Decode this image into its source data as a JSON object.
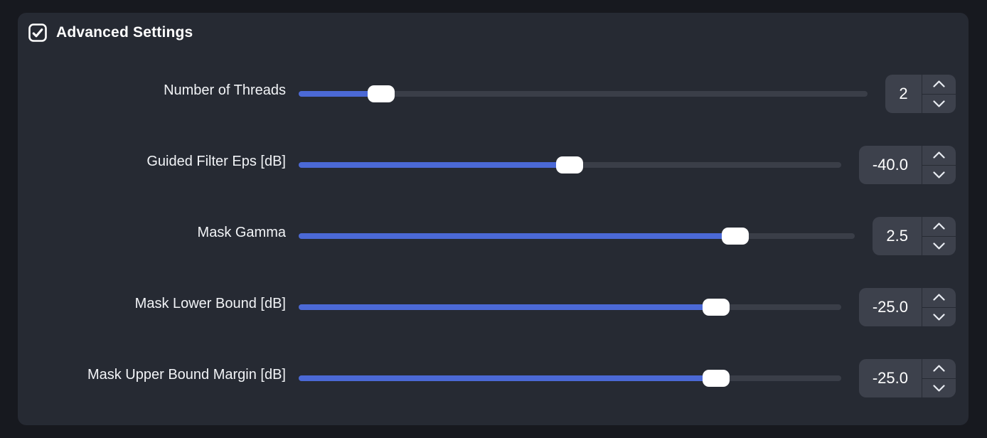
{
  "colors": {
    "page_background": "#17191f",
    "panel_background": "#262a33",
    "slider_track": "#3a3e48",
    "slider_fill": "#4b69d6",
    "slider_thumb": "#ffffff",
    "input_background": "#3d414c",
    "text": "#ffffff"
  },
  "header": {
    "label": "Advanced Settings",
    "checkbox_checked": true
  },
  "sliders": [
    {
      "label": "Number of Threads",
      "value": "2",
      "fill_percent": 14.5
    },
    {
      "label": "Guided Filter Eps [dB]",
      "value": "-40.0",
      "fill_percent": 50.0
    },
    {
      "label": "Mask Gamma",
      "value": "2.5",
      "fill_percent": 78.5
    },
    {
      "label": "Mask Lower Bound [dB]",
      "value": "-25.0",
      "fill_percent": 77.0
    },
    {
      "label": "Mask Upper Bound Margin [dB]",
      "value": "-25.0",
      "fill_percent": 77.0
    }
  ]
}
